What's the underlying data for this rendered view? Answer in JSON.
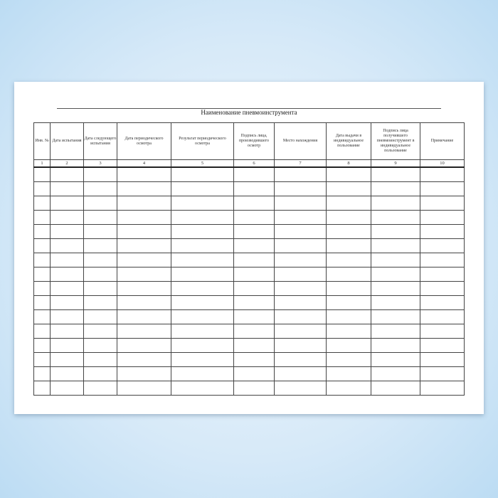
{
  "document": {
    "title": "Наименование пневмоинструмента",
    "columns": [
      {
        "header": "Инв. №",
        "number": "1"
      },
      {
        "header": "Дата испытания",
        "number": "2"
      },
      {
        "header": "Дата следующего испытания",
        "number": "3"
      },
      {
        "header": "Дата периодического осмотра",
        "number": "4"
      },
      {
        "header": "Результат периодического осмотра",
        "number": "5"
      },
      {
        "header": "Подпись лица, производившего осмотр",
        "number": "6"
      },
      {
        "header": "Место нахождения",
        "number": "7"
      },
      {
        "header": "Дата выдачи в индивидуальное пользование",
        "number": "8"
      },
      {
        "header": "Подпись лица получившего пневмоинструмент в индивидуальное пользование",
        "number": "9"
      },
      {
        "header": "Примечание",
        "number": "10"
      }
    ],
    "empty_rows": 16
  }
}
